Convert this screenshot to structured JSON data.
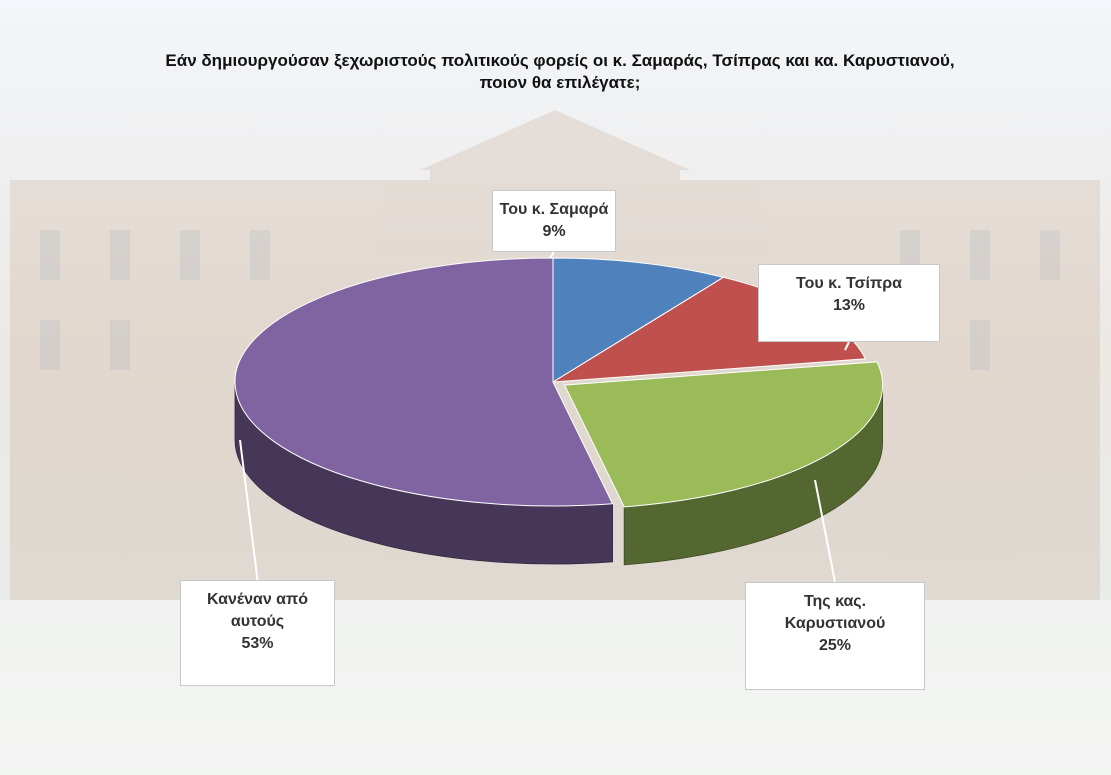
{
  "chart_data": {
    "type": "pie",
    "title": "Εάν δημιουργούσαν ξεχωριστούς πολιτικούς φορείς οι κ. Σαμαράς, Τσίπρας και κα. Καρυστιανού, ποιον θα επιλέγατε;",
    "categories": [
      "Του κ. Σαμαρά",
      "Του κ. Τσίπρα",
      "Της κας. Καρυστιανού",
      "Κανέναν από αυτούς"
    ],
    "values": [
      9,
      13,
      25,
      53
    ],
    "value_labels": [
      "9%",
      "13%",
      "25%",
      "53%"
    ],
    "colors": [
      "#4f81bd",
      "#c0504d",
      "#9bbb59",
      "#8064a2"
    ]
  }
}
